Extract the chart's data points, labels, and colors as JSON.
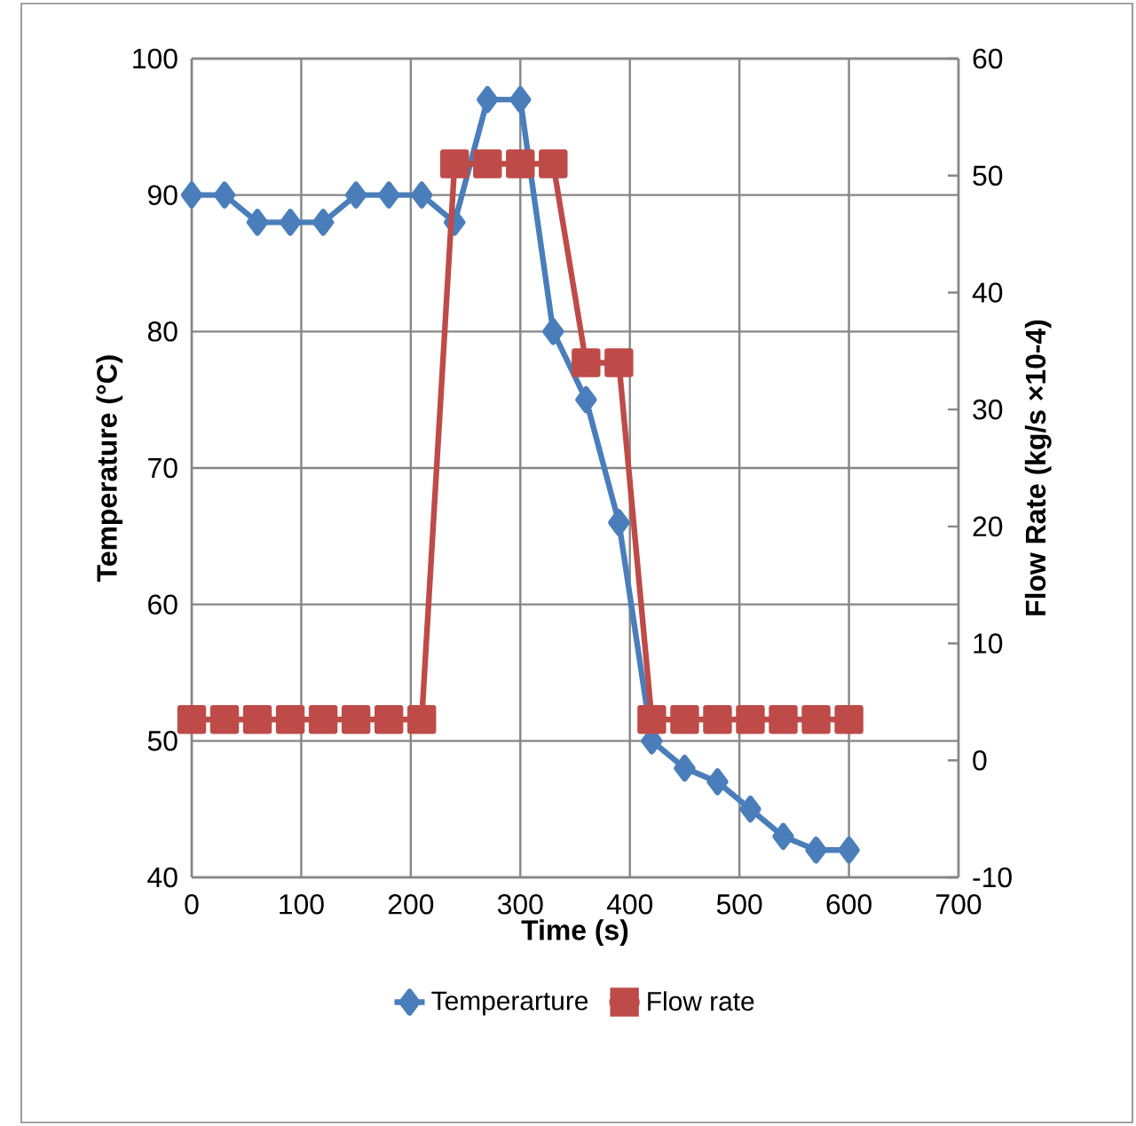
{
  "chart_data": {
    "type": "line",
    "xlabel": "Time (s)",
    "ylabel": "Temperature (°C)",
    "y2label": "Flow Rate (kg/s ×10-4)",
    "xlim": [
      0,
      700
    ],
    "xticks": [
      0,
      100,
      200,
      300,
      400,
      500,
      600,
      700
    ],
    "ylim": [
      40,
      100
    ],
    "yticks": [
      40,
      50,
      60,
      70,
      80,
      90,
      100
    ],
    "y2lim": [
      -10,
      60
    ],
    "y2ticks": [
      -10,
      0,
      10,
      20,
      30,
      40,
      50,
      60
    ],
    "grid": true,
    "legend": "bottom",
    "series": [
      {
        "name": "Temperarture",
        "color": "#4a7ebb",
        "marker": "diamond",
        "x": [
          0,
          30,
          60,
          90,
          120,
          150,
          180,
          210,
          240,
          270,
          300,
          330,
          360,
          390,
          420,
          450,
          480,
          510,
          540,
          570,
          600
        ],
        "values": [
          90,
          90,
          88,
          88,
          88,
          90,
          90,
          90,
          88,
          97,
          97,
          80,
          75,
          66,
          50,
          48,
          47,
          45,
          43,
          42,
          42
        ]
      },
      {
        "name": "Flow rate",
        "color": "#be4b48",
        "marker": "square",
        "axis": "y2",
        "x": [
          0,
          30,
          60,
          90,
          120,
          150,
          180,
          210,
          240,
          270,
          300,
          330,
          360,
          390,
          420,
          450,
          480,
          510,
          540,
          570,
          600
        ],
        "values": [
          3.5,
          3.5,
          3.5,
          3.5,
          3.5,
          3.5,
          3.5,
          3.5,
          51,
          51,
          51,
          51,
          34,
          34,
          3.5,
          3.5,
          3.5,
          3.5,
          3.5,
          3.5,
          3.5
        ]
      }
    ]
  }
}
